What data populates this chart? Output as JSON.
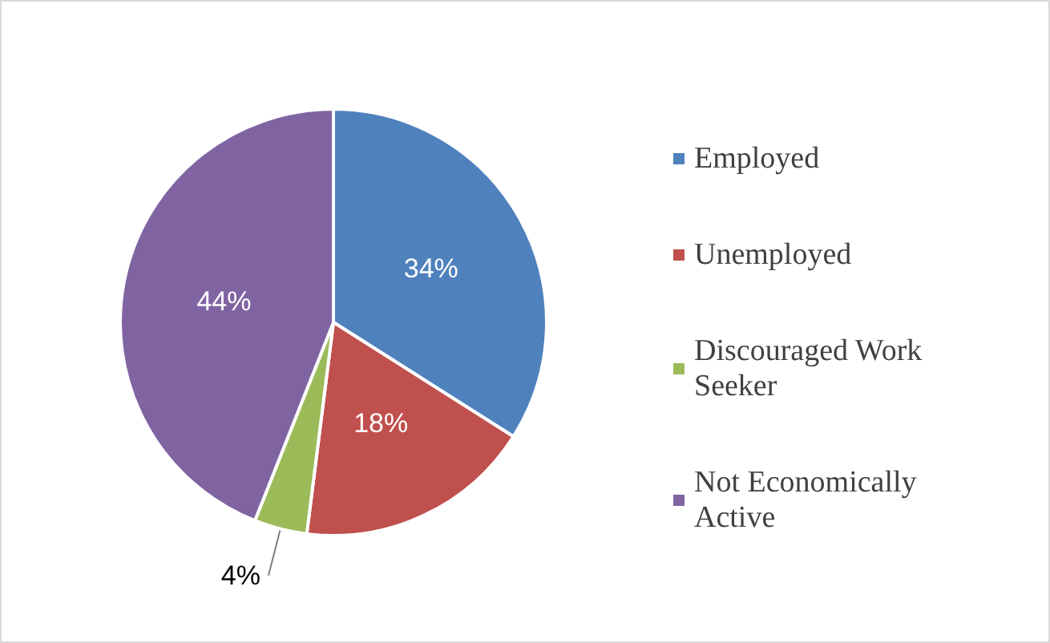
{
  "chart_data": {
    "type": "pie",
    "categories": [
      "Employed",
      "Unemployed",
      "Discouraged Work Seeker",
      "Not Economically Active"
    ],
    "values": [
      34,
      18,
      4,
      44
    ],
    "colors": [
      "#4f81bd",
      "#c0504d",
      "#9bbb59",
      "#8064a2"
    ],
    "value_labels": [
      "34%",
      "18%",
      "4%",
      "44%"
    ],
    "legend": "right"
  }
}
